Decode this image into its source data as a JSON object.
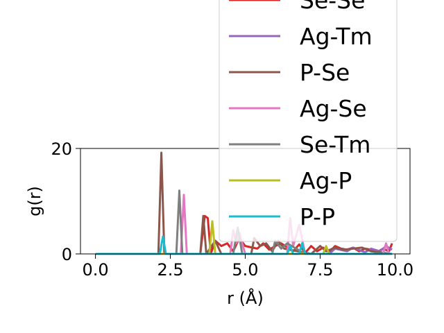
{
  "chart_data": {
    "type": "line",
    "xlabel": "r (Å)",
    "ylabel": "g(r)",
    "xlim": [
      -0.5,
      10.5
    ],
    "ylim": [
      0,
      20
    ],
    "xticks": [
      0.0,
      2.5,
      5.0,
      7.5,
      10.0
    ],
    "xtick_labels": [
      "0.0",
      "2.5",
      "5.0",
      "7.5",
      "10.0"
    ],
    "yticks": [
      0,
      20
    ],
    "ytick_labels": [
      "0",
      "20"
    ],
    "grid": false,
    "legend_position": "upper-right",
    "series": [
      {
        "name": "Se-Se",
        "color": "#d62728",
        "x": [
          0,
          3.5,
          3.65,
          3.75,
          3.85,
          4.0,
          4.2,
          4.4,
          4.6,
          4.8,
          5.0,
          5.4,
          5.6,
          5.8,
          6.0,
          6.2,
          6.6,
          6.8,
          7.0,
          7.2,
          7.4,
          7.6,
          7.8,
          8.0,
          8.2,
          8.4,
          8.6,
          8.8,
          9.0,
          9.2,
          9.4,
          9.6,
          9.8,
          9.9
        ],
        "y": [
          0,
          0,
          7.2,
          6.8,
          0,
          2.5,
          1.5,
          2.0,
          0.5,
          3.0,
          1.5,
          1.0,
          2.0,
          0.8,
          1.5,
          2.0,
          0.5,
          1.8,
          0.2,
          1.5,
          0.5,
          1.2,
          0.3,
          1.5,
          1.0,
          0.8,
          1.2,
          0.5,
          1.0,
          0.8,
          0.3,
          1.0,
          0.5,
          2.0
        ]
      },
      {
        "name": "Ag-Tm",
        "color": "#9467bd",
        "x": [
          0,
          7.8,
          8.0,
          8.4,
          8.6,
          9.0,
          9.2,
          9.5,
          9.7,
          9.9
        ],
        "y": [
          0,
          0,
          1.0,
          0.5,
          1.2,
          0.3,
          1.0,
          0.5,
          1.5,
          0.8
        ]
      },
      {
        "name": "P-Se",
        "color": "#8c564b",
        "x": [
          0,
          2.1,
          2.2,
          2.3,
          3.5,
          3.6,
          3.7,
          4.0,
          4.2,
          5.2,
          5.3,
          5.5,
          5.7,
          5.9,
          6.1,
          6.3,
          7.2,
          7.5,
          7.7,
          8.0,
          8.3,
          8.6,
          8.9,
          9.2,
          9.9
        ],
        "y": [
          0,
          0,
          19.2,
          0,
          0,
          7.2,
          0,
          2.5,
          0,
          0,
          3.0,
          1.5,
          2.0,
          0.5,
          2.5,
          1.0,
          0,
          1.5,
          0.5,
          1.2,
          0.8,
          1.0,
          1.2,
          0.5,
          0
        ]
      },
      {
        "name": "Ag-Se",
        "color": "#e377c2",
        "x": [
          0,
          2.85,
          2.95,
          3.05,
          4.5,
          4.6,
          4.7,
          4.8,
          5.0,
          6.4,
          6.5,
          6.6,
          6.8,
          7.0,
          9.6,
          9.7,
          9.8
        ],
        "y": [
          0,
          0,
          11.2,
          0,
          0,
          4.5,
          2.0,
          4.0,
          0,
          0,
          6.8,
          1.5,
          5.5,
          0,
          0,
          2.0,
          0
        ]
      },
      {
        "name": "Se-Tm",
        "color": "#7f7f7f",
        "x": [
          0,
          2.7,
          2.8,
          2.9,
          4.6,
          4.75,
          4.9,
          5.9,
          6.0,
          6.2,
          6.4,
          7.0,
          9.9
        ],
        "y": [
          0,
          0,
          12.0,
          0,
          0,
          5.0,
          0,
          0,
          2.5,
          1.0,
          2.0,
          0,
          0
        ]
      },
      {
        "name": "Ag-P",
        "color": "#bcbd22",
        "x": [
          0,
          3.8,
          3.9,
          4.0,
          7.6,
          7.7,
          7.8,
          9.9
        ],
        "y": [
          0,
          0,
          6.2,
          0,
          0,
          1.5,
          0,
          0
        ]
      },
      {
        "name": "P-P",
        "color": "#17becf",
        "x": [
          0,
          2.15,
          2.25,
          2.35,
          6.4,
          6.5,
          6.6,
          6.8,
          6.9,
          7.0,
          9.9
        ],
        "y": [
          0,
          0,
          3.3,
          0,
          0,
          1.5,
          0,
          0,
          2.0,
          0,
          0
        ]
      }
    ]
  }
}
